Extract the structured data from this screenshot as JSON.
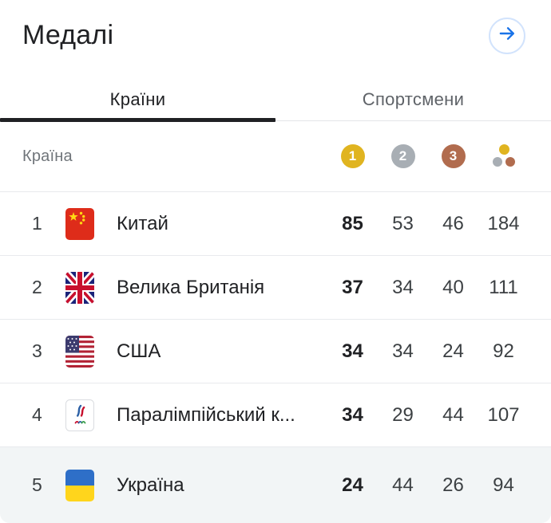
{
  "header": {
    "title": "Медалі"
  },
  "tabs": [
    {
      "label": "Країни",
      "active": true
    },
    {
      "label": "Спортсмени",
      "active": false
    }
  ],
  "table": {
    "country_header": "Країна",
    "medal_headers": {
      "gold": "1",
      "silver": "2",
      "bronze": "3"
    },
    "rows": [
      {
        "rank": "1",
        "country": "Китай",
        "flag": "china",
        "gold": "85",
        "silver": "53",
        "bronze": "46",
        "total": "184",
        "highlight": false
      },
      {
        "rank": "2",
        "country": "Велика Британія",
        "flag": "uk",
        "gold": "37",
        "silver": "34",
        "bronze": "40",
        "total": "111",
        "highlight": false
      },
      {
        "rank": "3",
        "country": "США",
        "flag": "usa",
        "gold": "34",
        "silver": "34",
        "bronze": "24",
        "total": "92",
        "highlight": false
      },
      {
        "rank": "4",
        "country": "Паралімпійський к...",
        "flag": "paralympic",
        "gold": "34",
        "silver": "29",
        "bronze": "44",
        "total": "107",
        "highlight": false
      },
      {
        "rank": "5",
        "country": "Україна",
        "flag": "ukraine",
        "gold": "24",
        "silver": "44",
        "bronze": "26",
        "total": "94",
        "highlight": true
      }
    ]
  },
  "colors": {
    "accent": "#1a73e8",
    "accent_ring": "#d2e3fc",
    "gold": "#e0b420",
    "silver": "#a8aeb4",
    "bronze": "#b16c4e",
    "highlight_row": "#f2f5f6",
    "active_tab": "#202124",
    "inactive_tab": "#5f6368"
  }
}
